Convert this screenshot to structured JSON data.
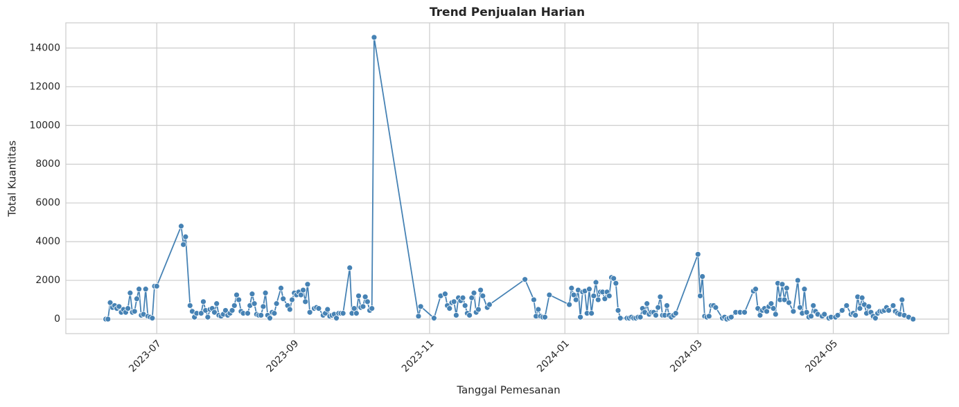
{
  "chart_data": {
    "type": "line",
    "title": "Trend Penjualan Harian",
    "xlabel": "Tanggal Pemesanan",
    "ylabel": "Total Kuantitas",
    "color": "#4682b4",
    "grid": true,
    "xlim": [
      "2023-05-21",
      "2024-06-22"
    ],
    "xticks": [
      {
        "value": "2023-07-01",
        "label": "2023-07"
      },
      {
        "value": "2023-09-01",
        "label": "2023-09"
      },
      {
        "value": "2023-11-01",
        "label": "2023-11"
      },
      {
        "value": "2024-01-01",
        "label": "2024-01"
      },
      {
        "value": "2024-03-01",
        "label": "2024-03"
      },
      {
        "value": "2024-05-01",
        "label": "2024-05"
      }
    ],
    "ylim": [
      -750,
      15300
    ],
    "yticks": [
      0,
      2000,
      4000,
      6000,
      8000,
      10000,
      12000,
      14000
    ],
    "x": [
      "2023-06-08",
      "2023-06-09",
      "2023-06-10",
      "2023-06-11",
      "2023-06-12",
      "2023-06-13",
      "2023-06-14",
      "2023-06-15",
      "2023-06-16",
      "2023-06-17",
      "2023-06-18",
      "2023-06-19",
      "2023-06-20",
      "2023-06-21",
      "2023-06-22",
      "2023-06-23",
      "2023-06-24",
      "2023-06-25",
      "2023-06-26",
      "2023-06-27",
      "2023-06-28",
      "2023-06-29",
      "2023-06-30",
      "2023-07-01",
      "2023-07-12",
      "2023-07-13",
      "2023-07-14",
      "2023-07-16",
      "2023-07-17",
      "2023-07-18",
      "2023-07-19",
      "2023-07-21",
      "2023-07-22",
      "2023-07-23",
      "2023-07-24",
      "2023-07-25",
      "2023-07-26",
      "2023-07-27",
      "2023-07-28",
      "2023-07-29",
      "2023-07-30",
      "2023-07-31",
      "2023-08-01",
      "2023-08-02",
      "2023-08-03",
      "2023-08-04",
      "2023-08-05",
      "2023-08-06",
      "2023-08-07",
      "2023-08-08",
      "2023-08-09",
      "2023-08-11",
      "2023-08-12",
      "2023-08-13",
      "2023-08-14",
      "2023-08-15",
      "2023-08-16",
      "2023-08-17",
      "2023-08-18",
      "2023-08-19",
      "2023-08-20",
      "2023-08-21",
      "2023-08-22",
      "2023-08-23",
      "2023-08-24",
      "2023-08-26",
      "2023-08-27",
      "2023-08-29",
      "2023-08-30",
      "2023-08-31",
      "2023-09-01",
      "2023-09-02",
      "2023-09-03",
      "2023-09-04",
      "2023-09-05",
      "2023-09-06",
      "2023-09-07",
      "2023-09-08",
      "2023-09-10",
      "2023-09-11",
      "2023-09-12",
      "2023-09-14",
      "2023-09-15",
      "2023-09-16",
      "2023-09-17",
      "2023-09-18",
      "2023-09-19",
      "2023-09-20",
      "2023-09-21",
      "2023-09-22",
      "2023-09-23",
      "2023-09-26",
      "2023-09-27",
      "2023-09-28",
      "2023-09-29",
      "2023-09-30",
      "2023-10-01",
      "2023-10-02",
      "2023-10-03",
      "2023-10-04",
      "2023-10-05",
      "2023-10-06",
      "2023-10-07",
      "2023-10-27",
      "2023-10-28",
      "2023-11-03",
      "2023-11-06",
      "2023-11-08",
      "2023-11-09",
      "2023-11-10",
      "2023-11-11",
      "2023-11-12",
      "2023-11-13",
      "2023-11-14",
      "2023-11-15",
      "2023-11-16",
      "2023-11-17",
      "2023-11-18",
      "2023-11-19",
      "2023-11-20",
      "2023-11-21",
      "2023-11-22",
      "2023-11-23",
      "2023-11-24",
      "2023-11-25",
      "2023-11-27",
      "2023-11-28",
      "2023-12-14",
      "2023-12-18",
      "2023-12-19",
      "2023-12-20",
      "2023-12-21",
      "2023-12-22",
      "2023-12-23",
      "2023-12-25",
      "2024-01-03",
      "2024-01-04",
      "2024-01-05",
      "2024-01-06",
      "2024-01-07",
      "2024-01-08",
      "2024-01-09",
      "2024-01-10",
      "2024-01-11",
      "2024-01-12",
      "2024-01-13",
      "2024-01-14",
      "2024-01-15",
      "2024-01-16",
      "2024-01-17",
      "2024-01-18",
      "2024-01-19",
      "2024-01-20",
      "2024-01-21",
      "2024-01-22",
      "2024-01-23",
      "2024-01-24",
      "2024-01-25",
      "2024-01-26",
      "2024-01-29",
      "2024-01-30",
      "2024-01-31",
      "2024-02-01",
      "2024-02-02",
      "2024-02-03",
      "2024-02-04",
      "2024-02-05",
      "2024-02-06",
      "2024-02-07",
      "2024-02-08",
      "2024-02-09",
      "2024-02-10",
      "2024-02-11",
      "2024-02-12",
      "2024-02-13",
      "2024-02-14",
      "2024-02-15",
      "2024-02-16",
      "2024-02-17",
      "2024-02-18",
      "2024-02-19",
      "2024-02-20",
      "2024-03-01",
      "2024-03-02",
      "2024-03-03",
      "2024-03-04",
      "2024-03-05",
      "2024-03-06",
      "2024-03-07",
      "2024-03-08",
      "2024-03-09",
      "2024-03-12",
      "2024-03-13",
      "2024-03-14",
      "2024-03-15",
      "2024-03-16",
      "2024-03-18",
      "2024-03-20",
      "2024-03-22",
      "2024-03-26",
      "2024-03-27",
      "2024-03-28",
      "2024-03-29",
      "2024-03-30",
      "2024-03-31",
      "2024-04-01",
      "2024-04-02",
      "2024-04-03",
      "2024-04-04",
      "2024-04-05",
      "2024-04-06",
      "2024-04-07",
      "2024-04-08",
      "2024-04-09",
      "2024-04-10",
      "2024-04-11",
      "2024-04-13",
      "2024-04-15",
      "2024-04-16",
      "2024-04-17",
      "2024-04-18",
      "2024-04-19",
      "2024-04-20",
      "2024-04-21",
      "2024-04-22",
      "2024-04-23",
      "2024-04-24",
      "2024-04-26",
      "2024-04-27",
      "2024-04-29",
      "2024-04-30",
      "2024-05-02",
      "2024-05-03",
      "2024-05-05",
      "2024-05-07",
      "2024-05-09",
      "2024-05-10",
      "2024-05-11",
      "2024-05-12",
      "2024-05-13",
      "2024-05-14",
      "2024-05-15",
      "2024-05-16",
      "2024-05-17",
      "2024-05-18",
      "2024-05-19",
      "2024-05-20",
      "2024-05-21",
      "2024-05-22",
      "2024-05-23",
      "2024-05-24",
      "2024-05-25",
      "2024-05-26",
      "2024-05-28",
      "2024-05-29",
      "2024-05-30",
      "2024-05-31",
      "2024-06-01",
      "2024-06-02",
      "2024-06-04",
      "2024-06-06"
    ],
    "values": [
      0,
      0,
      850,
      600,
      700,
      550,
      650,
      350,
      500,
      350,
      550,
      1350,
      350,
      400,
      1050,
      1550,
      200,
      250,
      1550,
      150,
      100,
      50,
      1700,
      1700,
      4800,
      3850,
      4250,
      700,
      400,
      100,
      300,
      300,
      900,
      450,
      100,
      500,
      550,
      350,
      800,
      200,
      150,
      250,
      450,
      200,
      300,
      450,
      700,
      1250,
      1000,
      400,
      300,
      300,
      700,
      1300,
      800,
      250,
      200,
      200,
      650,
      1350,
      200,
      50,
      350,
      300,
      800,
      1600,
      1050,
      700,
      500,
      1000,
      1350,
      1250,
      1400,
      1250,
      1500,
      900,
      1800,
      350,
      550,
      600,
      550,
      200,
      300,
      500,
      150,
      200,
      250,
      50,
      300,
      300,
      300,
      2650,
      300,
      550,
      300,
      1200,
      600,
      650,
      1150,
      900,
      450,
      550,
      14550,
      150,
      650,
      50,
      1200,
      1300,
      700,
      550,
      850,
      900,
      200,
      1100,
      950,
      1100,
      700,
      300,
      200,
      1100,
      1350,
      350,
      500,
      1500,
      1200,
      600,
      750,
      2050,
      1000,
      150,
      500,
      150,
      100,
      100,
      1250,
      750,
      1600,
      1250,
      1000,
      1500,
      100,
      1400,
      1450,
      300,
      1550,
      300,
      1200,
      1900,
      1000,
      1400,
      1400,
      1050,
      1400,
      1200,
      2150,
      2100,
      1850,
      450,
      50,
      50,
      50,
      100,
      50,
      50,
      100,
      100,
      550,
      350,
      800,
      250,
      350,
      350,
      200,
      600,
      1150,
      200,
      200,
      700,
      200,
      100,
      200,
      300,
      3350,
      1200,
      2200,
      150,
      100,
      150,
      700,
      700,
      600,
      50,
      100,
      0,
      50,
      100,
      350,
      350,
      350,
      1450,
      1550,
      550,
      200,
      450,
      550,
      400,
      650,
      800,
      550,
      250,
      1850,
      1000,
      1800,
      1000,
      1600,
      850,
      400,
      2000,
      600,
      300,
      1550,
      350,
      100,
      150,
      700,
      400,
      250,
      150,
      250,
      50,
      100,
      100,
      200,
      450,
      700,
      250,
      300,
      200,
      1150,
      550,
      1100,
      750,
      300,
      650,
      350,
      150,
      50,
      300,
      400,
      400,
      450,
      600,
      450,
      700,
      400,
      300,
      250,
      1000,
      200,
      100,
      0
    ]
  }
}
